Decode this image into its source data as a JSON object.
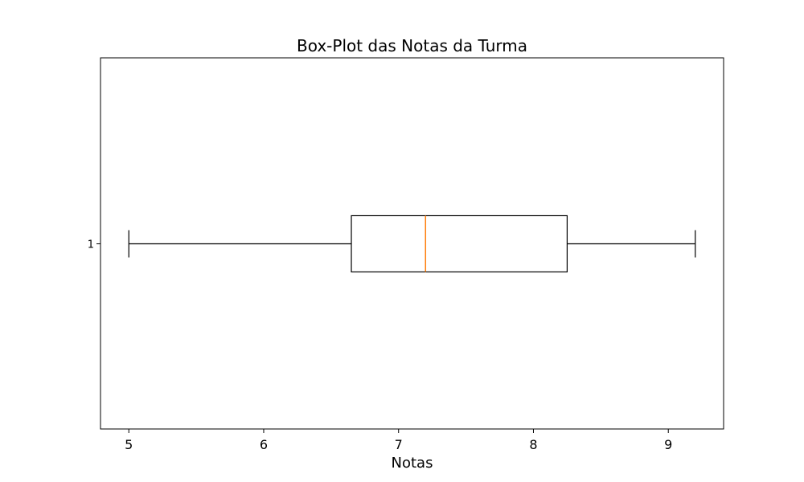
{
  "chart_data": {
    "type": "box",
    "orientation": "horizontal",
    "title": "Box-Plot das Notas da Turma",
    "xlabel": "Notas",
    "ylabel": "",
    "xlim": [
      4.79,
      9.41
    ],
    "xticks": [
      5,
      6,
      7,
      8,
      9
    ],
    "xtick_labels": [
      "5",
      "6",
      "7",
      "8",
      "9"
    ],
    "yticks": [
      "1"
    ],
    "grid": false,
    "legend": "none",
    "boxes": [
      {
        "label": "1",
        "whisker_low": 5.0,
        "q1": 6.65,
        "median": 7.2,
        "q3": 8.25,
        "whisker_high": 9.2
      }
    ],
    "colors": {
      "box": "#000000",
      "median": "#ff7f0e"
    }
  }
}
